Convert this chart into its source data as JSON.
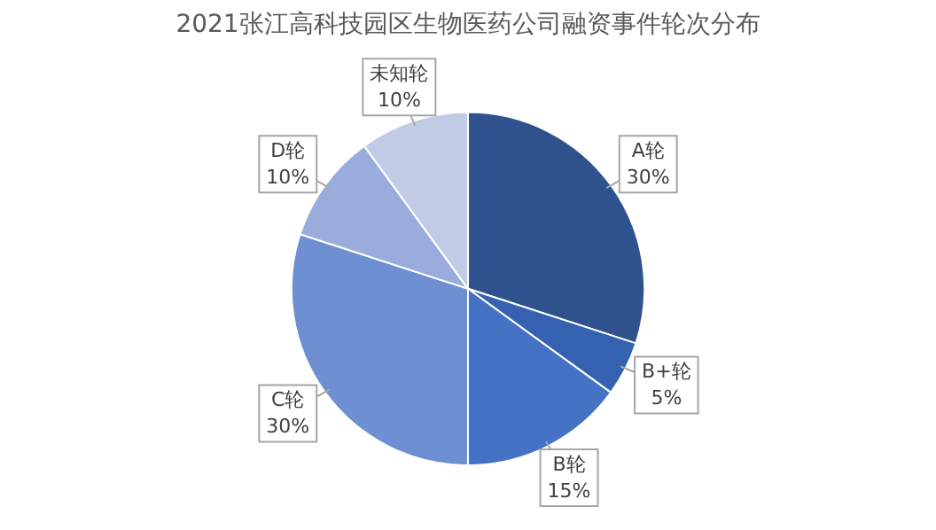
{
  "chart_data": {
    "type": "pie",
    "title": "2021张江高科技园区生物医药公司融资事件轮次分布",
    "categories": [
      "A轮",
      "B+轮",
      "B轮",
      "C轮",
      "D轮",
      "未知轮"
    ],
    "values": [
      30,
      5,
      15,
      30,
      10,
      10
    ],
    "value_labels": [
      "30%",
      "5%",
      "15%",
      "30%",
      "10%",
      "10%"
    ],
    "colors": [
      "#2f528f",
      "#3461b0",
      "#4472c4",
      "#6e8fd1",
      "#9aacdc",
      "#c2cbe6"
    ],
    "legend": false
  }
}
